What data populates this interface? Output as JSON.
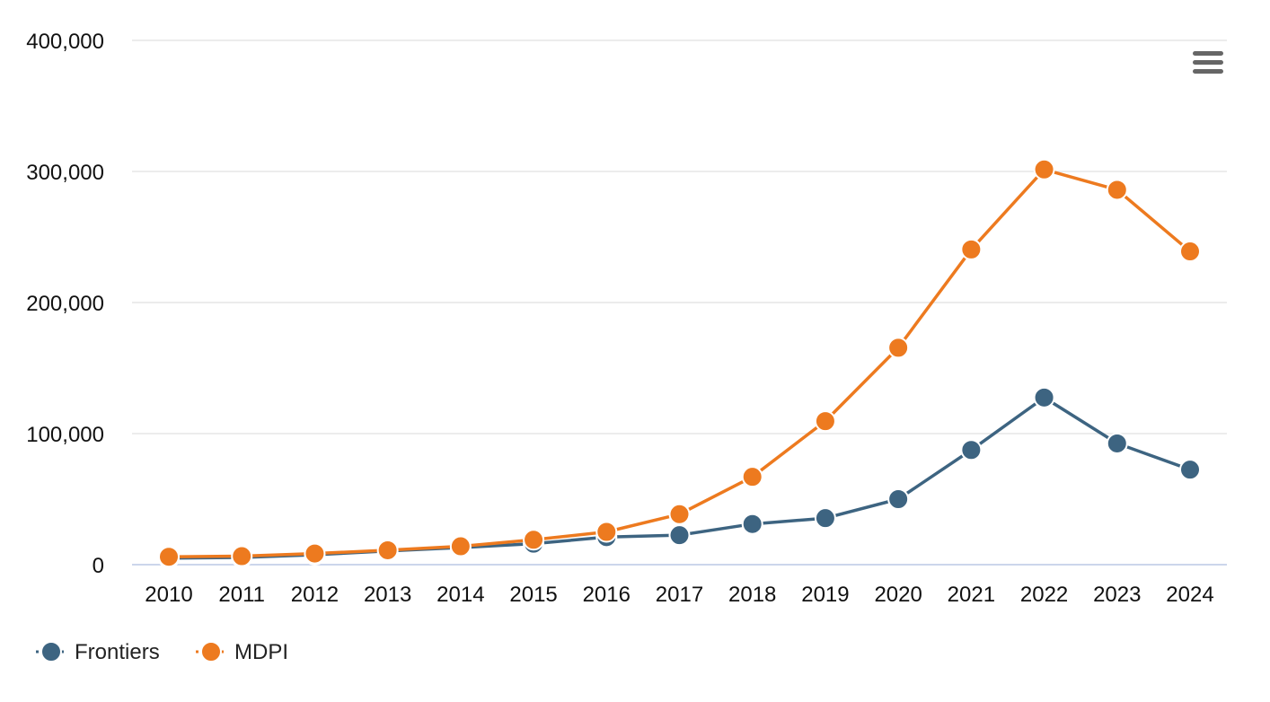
{
  "chart_data": {
    "type": "line",
    "title": "",
    "xlabel": "",
    "ylabel": "",
    "x": [
      "2010",
      "2011",
      "2012",
      "2013",
      "2014",
      "2015",
      "2016",
      "2017",
      "2018",
      "2019",
      "2020",
      "2021",
      "2022",
      "2023",
      "2024"
    ],
    "ylim": [
      0,
      400000
    ],
    "yticks": [
      0,
      100000,
      200000,
      300000,
      400000
    ],
    "ytick_labels": [
      "0",
      "100,000",
      "200,000",
      "300,000",
      "400,000"
    ],
    "grid": true,
    "legend_position": "bottom-left",
    "series": [
      {
        "name": "Frontiers",
        "color": "#3d6481",
        "values": [
          5000,
          5500,
          7500,
          10500,
          13000,
          16000,
          21000,
          22500,
          31000,
          35500,
          50000,
          87500,
          127500,
          92500,
          72500
        ]
      },
      {
        "name": "MDPI",
        "color": "#ed7a1f",
        "values": [
          6000,
          6500,
          8500,
          11000,
          14000,
          19000,
          25000,
          38500,
          67000,
          109500,
          165500,
          240500,
          301500,
          286000,
          239000
        ]
      }
    ]
  },
  "menu": {
    "icon": "hamburger-menu-icon"
  }
}
